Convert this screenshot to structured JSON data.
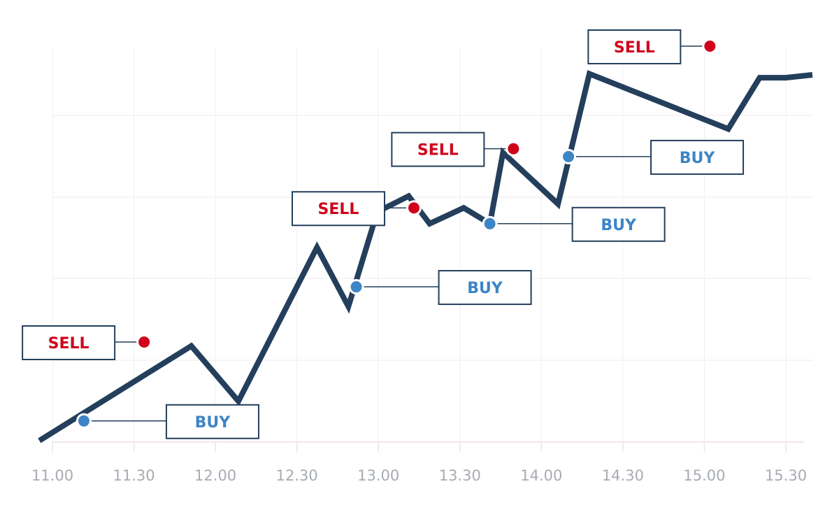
{
  "chart_data": {
    "type": "line",
    "title": "",
    "xlabel": "",
    "ylabel": "",
    "x_tick_labels": [
      "11.00",
      "11.30",
      "12.00",
      "12.30",
      "13.00",
      "13.30",
      "14.00",
      "14.30",
      "15.00",
      "15.30"
    ],
    "x_unit": "minutes after 11.00",
    "xlim": [
      0,
      280
    ],
    "ylim": [
      0,
      100
    ],
    "y_tick_labels": [],
    "grid": true,
    "line_color": "#243f5c",
    "series": [
      {
        "x": [
          -5,
          53,
          71,
          101,
          113,
          124,
          136,
          144,
          157,
          167,
          172,
          193,
          205,
          258,
          270,
          280
        ],
        "y": [
          0,
          24,
          10,
          49,
          34,
          58,
          62,
          55,
          59,
          55,
          73,
          60,
          93,
          79,
          92,
          92
        ],
        "points": [
          [
            -5,
            0
          ],
          [
            53,
            24
          ],
          [
            71,
            10
          ],
          [
            101,
            49
          ],
          [
            113,
            34
          ],
          [
            124,
            58
          ],
          [
            136,
            62
          ],
          [
            144,
            55
          ],
          [
            157,
            59
          ],
          [
            167,
            55
          ],
          [
            172,
            73
          ],
          [
            193,
            60
          ],
          [
            205,
            93
          ],
          [
            258,
            79
          ],
          [
            270,
            92
          ]
        ]
      }
    ],
    "annotations": [
      {
        "label": "BUY",
        "x": 12,
        "y": 5,
        "color": "#3d85c6",
        "label_side": "right"
      },
      {
        "label": "SELL",
        "x": 35,
        "y": 25,
        "color": "#d0021b",
        "label_side": "left"
      },
      {
        "label": "BUY",
        "x": 116,
        "y": 39,
        "color": "#3d85c6",
        "label_side": "right"
      },
      {
        "label": "SELL",
        "x": 138,
        "y": 59,
        "color": "#d0021b",
        "label_side": "left"
      },
      {
        "label": "BUY",
        "x": 167,
        "y": 55,
        "color": "#3d85c6",
        "label_side": "right"
      },
      {
        "label": "SELL",
        "x": 176,
        "y": 74,
        "color": "#d0021b",
        "label_side": "left"
      },
      {
        "label": "BUY",
        "x": 197,
        "y": 72,
        "color": "#3d85c6",
        "label_side": "right"
      },
      {
        "label": "SELL",
        "x": 251,
        "y": 100,
        "color": "#d0021b",
        "label_side": "left"
      }
    ]
  }
}
